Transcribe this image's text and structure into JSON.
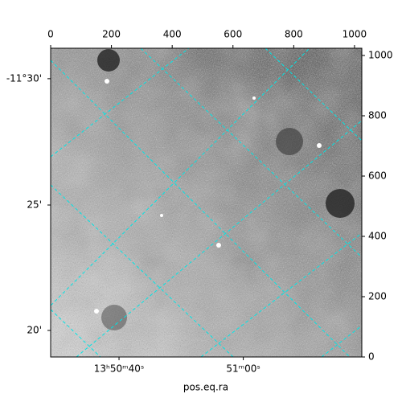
{
  "chart_data": {
    "type": "image",
    "xlabel": "pos.eq.ra",
    "xlim": [
      0,
      1024
    ],
    "ylim": [
      0,
      1024
    ],
    "xticks": [
      0,
      200,
      400,
      600,
      800,
      1000
    ],
    "yticks": [
      0,
      200,
      400,
      600,
      800,
      1000
    ],
    "world_xticks": [
      {
        "value": 225,
        "label": "13ʰ50ᵐ40ˢ"
      },
      {
        "value": 634,
        "label": "51ᵐ00ˢ"
      }
    ],
    "world_yticks": [
      {
        "value": 923,
        "label": "-11°30'"
      },
      {
        "value": 504,
        "label": "25'"
      },
      {
        "value": 88,
        "label": "20'"
      }
    ],
    "grid": true
  }
}
